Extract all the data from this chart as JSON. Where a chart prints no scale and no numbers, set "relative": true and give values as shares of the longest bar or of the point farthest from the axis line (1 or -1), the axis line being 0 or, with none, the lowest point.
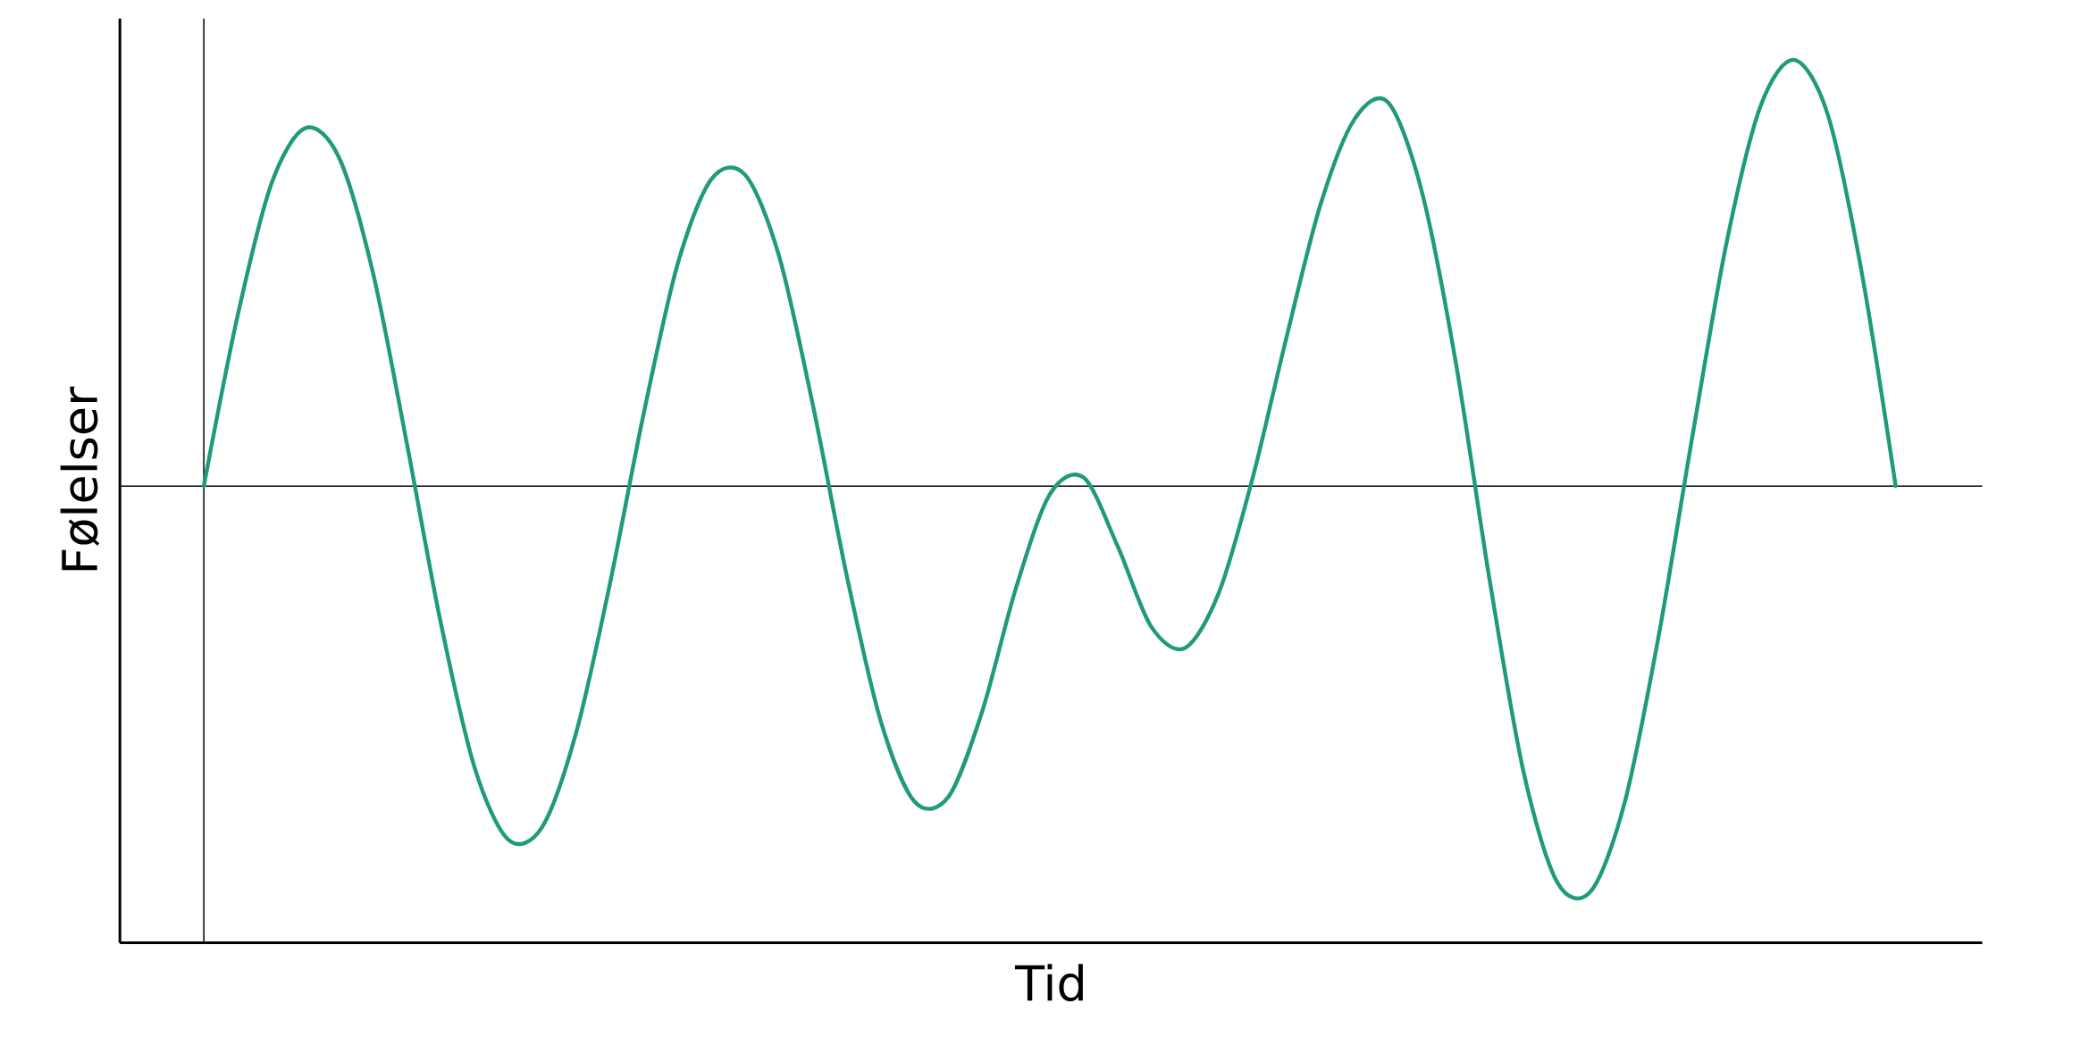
{
  "chart_data": {
    "type": "line",
    "xlabel": "Tid",
    "ylabel": "Følelser",
    "relative": true,
    "categories": [
      null,
      null,
      null,
      null,
      null,
      null,
      null,
      null,
      null,
      null,
      null,
      null,
      null,
      null,
      null,
      null,
      null,
      null,
      null,
      null,
      null,
      null,
      null,
      null,
      null,
      null,
      null,
      null,
      null,
      null,
      null,
      null,
      null,
      null,
      null,
      null,
      null,
      null,
      null,
      null,
      null,
      null,
      null,
      null,
      null,
      null,
      null,
      null,
      null,
      null,
      null
    ],
    "series": [
      {
        "color": "#1f9b7b",
        "values": [
          0,
          0.4,
          0.71,
          0.84,
          0.77,
          0.5,
          0.1,
          -0.32,
          -0.66,
          -0.83,
          -0.8,
          -0.58,
          -0.23,
          0.17,
          0.52,
          0.72,
          0.73,
          0.54,
          0.19,
          -0.21,
          -0.55,
          -0.74,
          -0.73,
          -0.53,
          -0.24,
          -0.02,
          0.02,
          -0.14,
          -0.33,
          -0.38,
          -0.25,
          0.02,
          0.35,
          0.66,
          0.86,
          0.9,
          0.69,
          0.29,
          -0.22,
          -0.67,
          -0.93,
          -0.95,
          -0.74,
          -0.35,
          0.12,
          0.57,
          0.89,
          1.0,
          0.87,
          0.5,
          0
        ]
      }
    ]
  }
}
